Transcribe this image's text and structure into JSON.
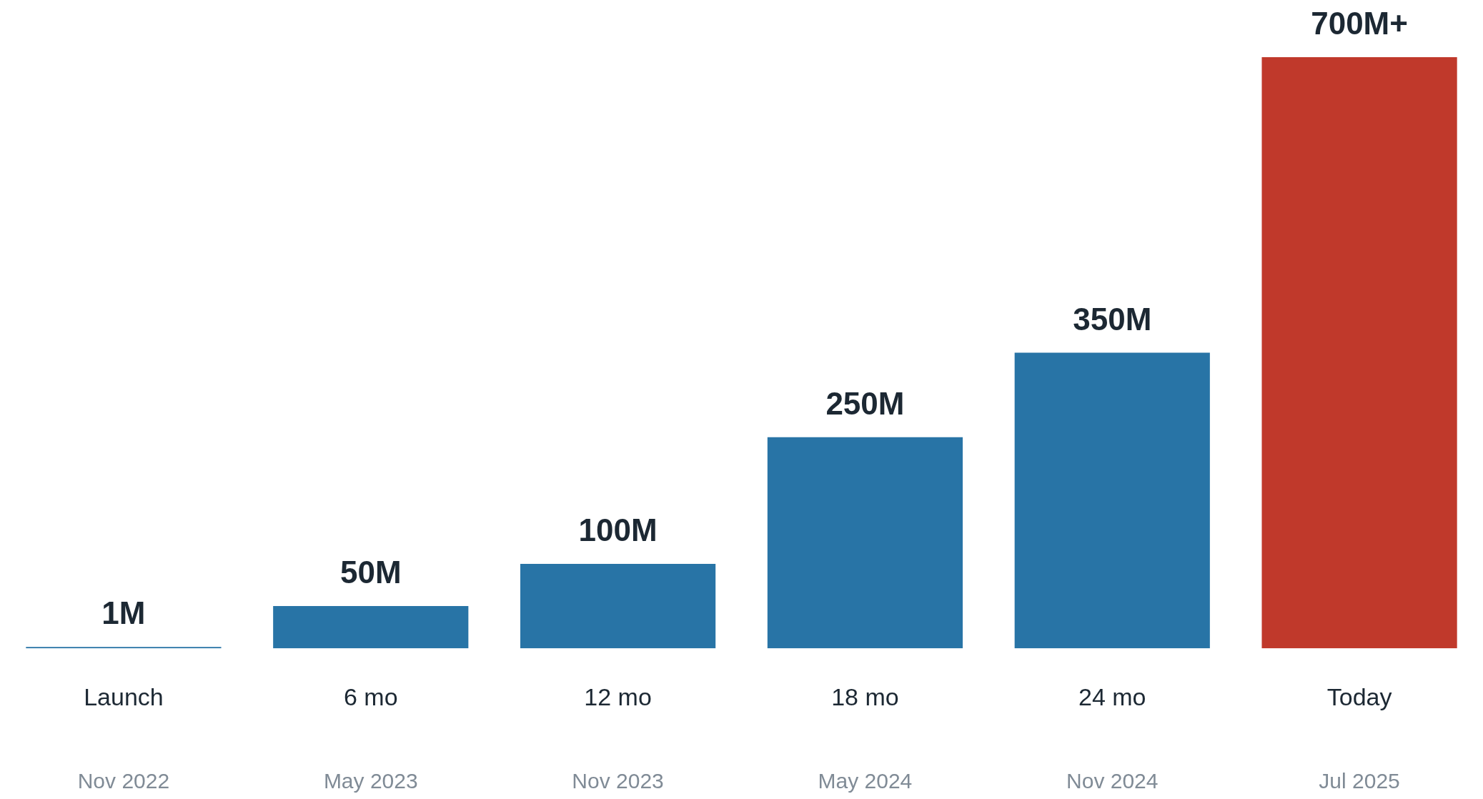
{
  "chart_data": {
    "type": "bar",
    "categories": [
      "Launch",
      "6 mo",
      "12 mo",
      "18 mo",
      "24 mo",
      "Today"
    ],
    "values": [
      1,
      50,
      100,
      250,
      350,
      700
    ],
    "value_labels": [
      "1M",
      "50M",
      "100M",
      "250M",
      "350M",
      "700M+"
    ],
    "colors": [
      "#2874a6",
      "#2874a6",
      "#2874a6",
      "#2874a6",
      "#2874a6",
      "#c0392b"
    ],
    "annotations": [
      "Nov 2022",
      "May 2023",
      "Nov 2023",
      "May 2024",
      "Nov 2024",
      "Jul 2025"
    ],
    "grid": false,
    "legend": false
  }
}
